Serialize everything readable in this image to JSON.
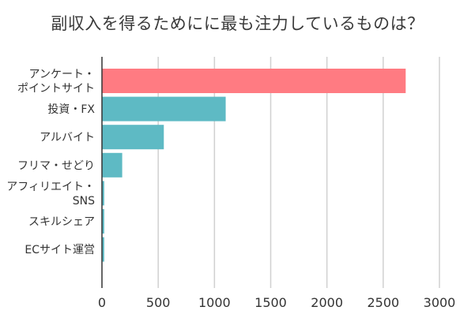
{
  "chart_data": {
    "type": "bar",
    "orientation": "horizontal",
    "title": "副収入を得るためにに最も注力しているものは？",
    "categories": [
      "アンケート・ポイントサイト",
      "投資・FX",
      "アルバイト",
      "フリマ・せどり",
      "アフィリエイト・SNS",
      "スキルシェア",
      "ECサイト運営"
    ],
    "category_lines": [
      [
        "アンケート・",
        "ポイントサイト"
      ],
      [
        "投資・FX"
      ],
      [
        "アルバイト"
      ],
      [
        "フリマ・せどり"
      ],
      [
        "アフィリエイト・",
        "SNS"
      ],
      [
        "スキルシェア"
      ],
      [
        "ECサイト運営"
      ]
    ],
    "values": [
      2700,
      1100,
      550,
      180,
      20,
      20,
      20
    ],
    "xlim": [
      0,
      3000
    ],
    "xticks": [
      "0",
      "500",
      "1000",
      "1500",
      "2000",
      "2500",
      "3000"
    ],
    "xtick_values": [
      0,
      500,
      1000,
      1500,
      2000,
      2500,
      3000
    ],
    "xlabel": "",
    "ylabel": "",
    "grid": true,
    "bar_colors": [
      "#ff7b82",
      "#5ebac4",
      "#5ebac4",
      "#5ebac4",
      "#5ebac4",
      "#5ebac4",
      "#5ebac4"
    ],
    "grid_color": "#d0d0d0",
    "axis_color": "#333333"
  }
}
